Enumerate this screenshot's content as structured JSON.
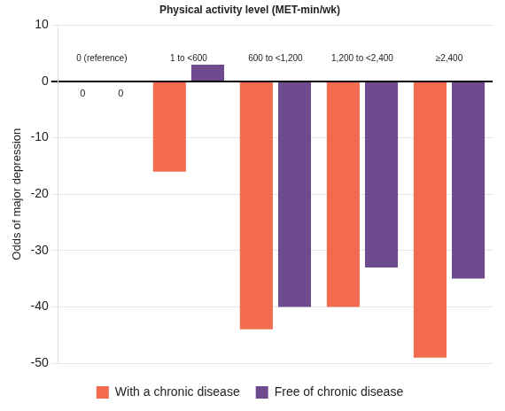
{
  "chart_data": {
    "type": "bar",
    "title": "Physical activity level (MET-min/wk)",
    "y_label": "Odds of major depression",
    "categories": [
      "0 (reference)",
      "1 to <600",
      "600 to <1,200",
      "1,200 to <2,400",
      "≥2,400"
    ],
    "series": [
      {
        "name": "With a chronic disease",
        "color": "#f26b4f",
        "values": [
          0,
          -16,
          -44,
          -40,
          -49
        ],
        "value_labels": [
          "0",
          null,
          null,
          null,
          null
        ]
      },
      {
        "name": "Free of chronic disease",
        "color": "#6e4a8f",
        "values": [
          0,
          3,
          -40,
          -33,
          -35
        ],
        "value_labels": [
          "0",
          null,
          null,
          null,
          null
        ]
      }
    ],
    "ylim": [
      -50,
      10
    ],
    "yticks": [
      10,
      0,
      -10,
      -20,
      -30,
      -40,
      -50
    ],
    "grid": true,
    "legend": "bottom"
  }
}
